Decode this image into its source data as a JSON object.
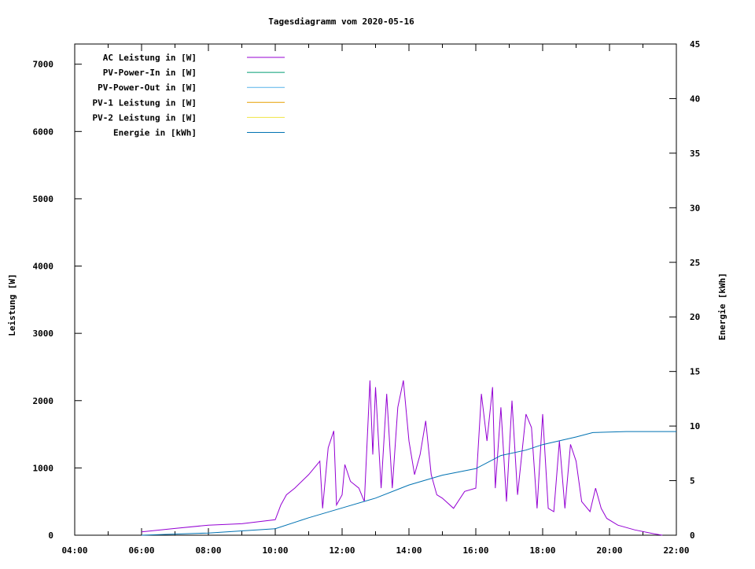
{
  "chart_data": {
    "type": "line",
    "title": "Tagesdiagramm vom 2020-05-16",
    "ylabel": "Leistung [W]",
    "y2label": "Energie [kWh]",
    "xlim": [
      "04:00",
      "22:00"
    ],
    "ylim": [
      0,
      7300
    ],
    "y2lim": [
      0,
      45
    ],
    "xticks": [
      "04:00",
      "06:00",
      "08:00",
      "10:00",
      "12:00",
      "14:00",
      "16:00",
      "18:00",
      "20:00",
      "22:00"
    ],
    "yticks": [
      0,
      1000,
      2000,
      3000,
      4000,
      5000,
      6000,
      7000
    ],
    "y2ticks": [
      0,
      5,
      10,
      15,
      20,
      25,
      30,
      35,
      40,
      45
    ],
    "grid": false,
    "legend_placement": "top-left",
    "series": [
      {
        "name": "AC Leistung in [W]",
        "color": "#9400d3",
        "axis": "y",
        "x": [
          "06:00",
          "07:00",
          "08:00",
          "09:00",
          "10:00",
          "10:10",
          "10:20",
          "10:35",
          "11:00",
          "11:20",
          "11:25",
          "11:35",
          "11:45",
          "11:50",
          "12:00",
          "12:05",
          "12:15",
          "12:30",
          "12:40",
          "12:50",
          "12:55",
          "13:00",
          "13:10",
          "13:20",
          "13:30",
          "13:40",
          "13:50",
          "14:00",
          "14:10",
          "14:20",
          "14:30",
          "14:40",
          "14:50",
          "15:00",
          "15:20",
          "15:40",
          "16:00",
          "16:10",
          "16:20",
          "16:30",
          "16:35",
          "16:45",
          "16:55",
          "17:05",
          "17:15",
          "17:30",
          "17:40",
          "17:50",
          "18:00",
          "18:10",
          "18:20",
          "18:30",
          "18:40",
          "18:50",
          "19:00",
          "19:10",
          "19:25",
          "19:35",
          "19:45",
          "19:55",
          "20:15",
          "20:45",
          "21:20",
          "21:35"
        ],
        "values": [
          50,
          100,
          150,
          170,
          230,
          450,
          600,
          700,
          900,
          1100,
          400,
          1300,
          1550,
          450,
          600,
          1050,
          800,
          700,
          500,
          2300,
          1200,
          2200,
          700,
          2100,
          700,
          1900,
          2300,
          1400,
          900,
          1200,
          1700,
          900,
          600,
          550,
          400,
          650,
          700,
          2100,
          1400,
          2200,
          700,
          1900,
          500,
          2000,
          600,
          1800,
          1600,
          400,
          1800,
          400,
          350,
          1400,
          400,
          1350,
          1100,
          500,
          350,
          700,
          400,
          250,
          150,
          80,
          20,
          0
        ]
      },
      {
        "name": "PV-Power-In in [W]",
        "color": "#009e73",
        "axis": "y",
        "x": [],
        "values": []
      },
      {
        "name": "PV-Power-Out in [W]",
        "color": "#56b4e9",
        "axis": "y",
        "x": [],
        "values": []
      },
      {
        "name": "PV-1 Leistung in [W]",
        "color": "#e69f00",
        "axis": "y",
        "x": [],
        "values": []
      },
      {
        "name": "PV-2 Leistung in [W]",
        "color": "#f0e442",
        "axis": "y",
        "x": [],
        "values": []
      },
      {
        "name": "Energie in [kWh]",
        "color": "#0072b2",
        "axis": "y2",
        "x": [
          "06:00",
          "08:00",
          "10:00",
          "11:00",
          "12:00",
          "13:00",
          "14:00",
          "15:00",
          "16:00",
          "16:45",
          "17:30",
          "18:00",
          "19:00",
          "19:30",
          "20:30",
          "22:00"
        ],
        "values": [
          0,
          0.2,
          0.6,
          1.6,
          2.5,
          3.4,
          4.6,
          5.5,
          6.1,
          7.3,
          7.8,
          8.3,
          9.0,
          9.4,
          9.5,
          9.5
        ]
      }
    ]
  }
}
